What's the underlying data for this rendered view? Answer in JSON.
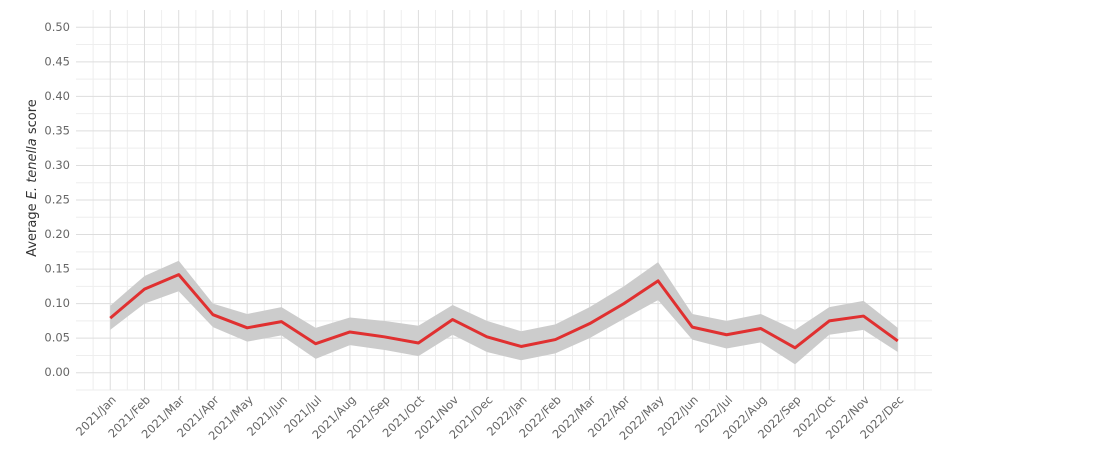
{
  "chart_data": {
    "type": "line",
    "y_label": {
      "prefix": "Average ",
      "italic": "E. tenella",
      "suffix": " score"
    },
    "categories": [
      "2021/Jan",
      "2021/Feb",
      "2021/Mar",
      "2021/Apr",
      "2021/May",
      "2021/Jun",
      "2021/Jul",
      "2021/Aug",
      "2021/Sep",
      "2021/Oct",
      "2021/Nov",
      "2021/Dec",
      "2022/Jan",
      "2022/Feb",
      "2022/Mar",
      "2022/Apr",
      "2022/May",
      "2022/Jun",
      "2022/Jul",
      "2022/Aug",
      "2022/Sep",
      "2022/Oct",
      "2022/Nov",
      "2022/Dec"
    ],
    "series": [
      {
        "color": "#e03030",
        "band_color": "#cccccc",
        "values": [
          0.079,
          0.121,
          0.142,
          0.084,
          0.065,
          0.074,
          0.042,
          0.059,
          0.052,
          0.043,
          0.077,
          0.052,
          0.038,
          0.048,
          0.071,
          0.1,
          0.133,
          0.066,
          0.055,
          0.064,
          0.036,
          0.075,
          0.082,
          0.046
        ],
        "upper": [
          0.097,
          0.14,
          0.162,
          0.1,
          0.085,
          0.095,
          0.065,
          0.08,
          0.075,
          0.068,
          0.098,
          0.075,
          0.06,
          0.07,
          0.095,
          0.125,
          0.16,
          0.085,
          0.075,
          0.085,
          0.062,
          0.095,
          0.104,
          0.065
        ],
        "lower": [
          0.062,
          0.1,
          0.118,
          0.066,
          0.045,
          0.054,
          0.02,
          0.04,
          0.033,
          0.024,
          0.055,
          0.03,
          0.018,
          0.028,
          0.05,
          0.078,
          0.105,
          0.048,
          0.035,
          0.044,
          0.012,
          0.055,
          0.062,
          0.03
        ]
      }
    ],
    "ylim": [
      -0.025,
      0.525
    ],
    "yticks": [
      {
        "value": 0,
        "label": "0.00"
      },
      {
        "value": 0.05,
        "label": "0.05"
      },
      {
        "value": 0.1,
        "label": "0.10"
      },
      {
        "value": 0.15,
        "label": "0.15"
      },
      {
        "value": 0.2,
        "label": "0.20"
      },
      {
        "value": 0.25,
        "label": "0.25"
      },
      {
        "value": 0.3,
        "label": "0.30"
      },
      {
        "value": 0.35,
        "label": "0.35"
      },
      {
        "value": 0.4,
        "label": "0.40"
      },
      {
        "value": 0.45,
        "label": "0.45"
      },
      {
        "value": 0.5,
        "label": "0.50"
      }
    ],
    "grid": true
  }
}
